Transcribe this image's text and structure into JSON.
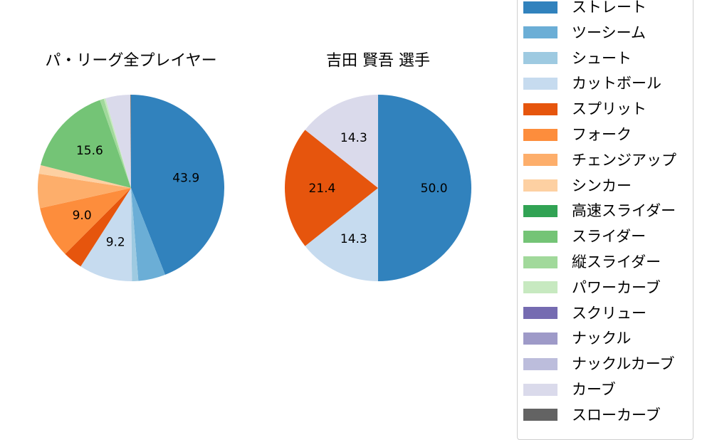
{
  "colors": {
    "ストレート": "#3182bd",
    "ツーシーム": "#6baed6",
    "シュート": "#9ecae1",
    "カットボール": "#c6dbef",
    "スプリット": "#e6550d",
    "フォーク": "#fd8d3c",
    "チェンジアップ": "#fdae6b",
    "シンカー": "#fdd0a2",
    "高速スライダー": "#31a354",
    "スライダー": "#74c476",
    "縦スライダー": "#a1d99b",
    "パワーカーブ": "#c7e9c0",
    "スクリュー": "#756bb1",
    "ナックル": "#9e9ac8",
    "ナックルカーブ": "#bcbddc",
    "カーブ": "#dadaeb",
    "スローカーブ": "#636363"
  },
  "legend": {
    "items": [
      "ストレート",
      "ツーシーム",
      "シュート",
      "カットボール",
      "スプリット",
      "フォーク",
      "チェンジアップ",
      "シンカー",
      "高速スライダー",
      "スライダー",
      "縦スライダー",
      "パワーカーブ",
      "スクリュー",
      "ナックル",
      "ナックルカーブ",
      "カーブ",
      "スローカーブ"
    ]
  },
  "chart_data": [
    {
      "type": "pie",
      "title": "パ・リーグ全プレイヤー",
      "start_angle_deg": 90,
      "direction": "clockwise",
      "label_min_pct": 8,
      "slices": [
        {
          "name": "ストレート",
          "value": 43.9
        },
        {
          "name": "ツーシーム",
          "value": 4.7
        },
        {
          "name": "シュート",
          "value": 1.1
        },
        {
          "name": "カットボール",
          "value": 9.2
        },
        {
          "name": "スプリット",
          "value": 3.4
        },
        {
          "name": "フォーク",
          "value": 9.0
        },
        {
          "name": "チェンジアップ",
          "value": 5.9
        },
        {
          "name": "シンカー",
          "value": 1.5
        },
        {
          "name": "スライダー",
          "value": 15.6
        },
        {
          "name": "縦スライダー",
          "value": 0.7
        },
        {
          "name": "パワーカーブ",
          "value": 0.3
        },
        {
          "name": "カーブ",
          "value": 4.3
        },
        {
          "name": "スローカーブ",
          "value": 0.1
        }
      ]
    },
    {
      "type": "pie",
      "title": "吉田 賢吾  選手",
      "start_angle_deg": 90,
      "direction": "clockwise",
      "label_min_pct": 8,
      "slices": [
        {
          "name": "ストレート",
          "value": 50.0
        },
        {
          "name": "カットボール",
          "value": 14.3
        },
        {
          "name": "スプリット",
          "value": 21.4
        },
        {
          "name": "カーブ",
          "value": 14.3
        }
      ]
    }
  ]
}
